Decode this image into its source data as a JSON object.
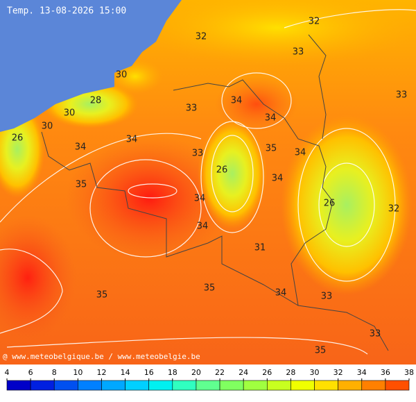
{
  "title": "Temp. 13-08-2026 15:00",
  "credit": "@ www.meteobelgique.be / www.meteobelgie.be",
  "contour_labels": [
    "32",
    "32",
    "33",
    "30",
    "33",
    "28",
    "34",
    "33",
    "30",
    "34",
    "30",
    "26",
    "34",
    "34",
    "33",
    "35",
    "34",
    "26",
    "34",
    "35",
    "34",
    "26",
    "32",
    "34",
    "31",
    "35",
    "35",
    "34",
    "33",
    "33",
    "35"
  ],
  "legend": {
    "ticks": [
      4,
      6,
      8,
      10,
      12,
      14,
      16,
      18,
      20,
      22,
      24,
      26,
      28,
      30,
      32,
      34,
      36,
      38
    ],
    "colors": [
      "#0000c8",
      "#0020e0",
      "#0050f0",
      "#0080ff",
      "#00a8ff",
      "#00d0ff",
      "#00f0f0",
      "#30ffc0",
      "#60ff90",
      "#80ff60",
      "#a0ff40",
      "#c8ff20",
      "#f0ff00",
      "#ffe000",
      "#ffb000",
      "#ff8000",
      "#ff5000"
    ]
  }
}
